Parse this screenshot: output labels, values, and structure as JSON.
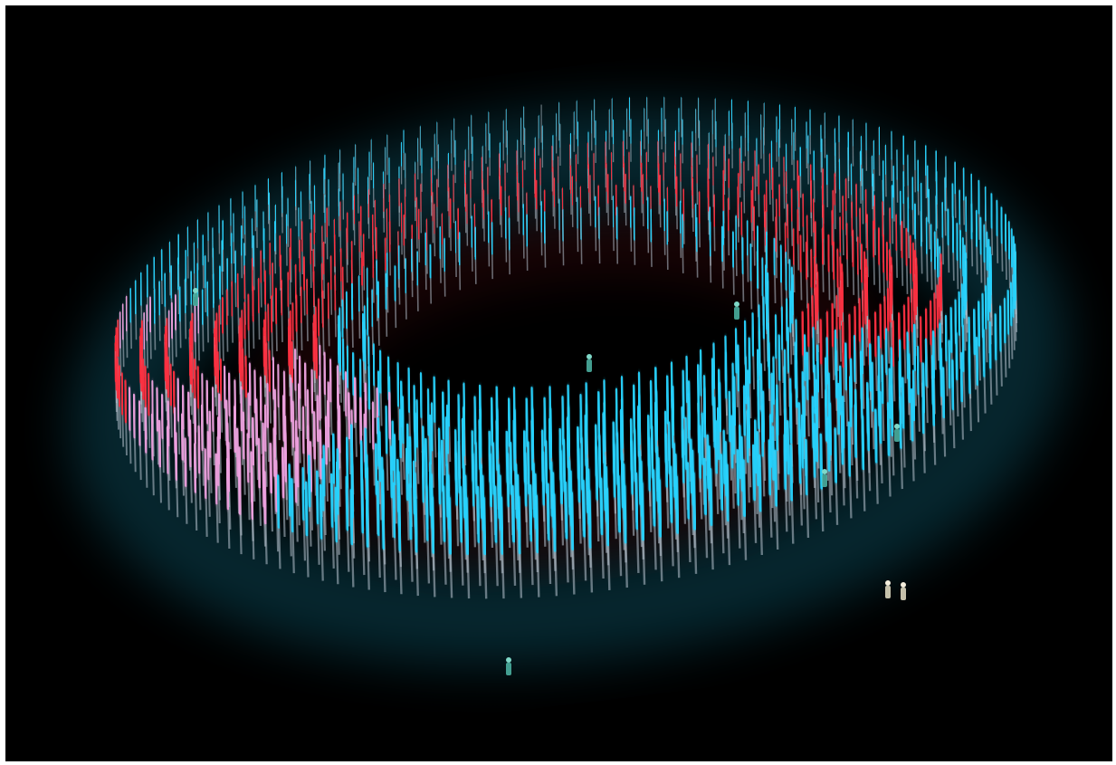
{
  "scene": {
    "subject": "ring-of-light-poles",
    "colors": {
      "background": "#000000",
      "frame": "#ffffff",
      "pole_blue": "#22d3ff",
      "pole_red": "#ff2a3a",
      "pole_pink": "#f0a0e0",
      "pole_shaft": "#b8c4d0"
    },
    "figures": [
      "person",
      "person",
      "person",
      "person",
      "person",
      "person",
      "person",
      "person"
    ]
  }
}
